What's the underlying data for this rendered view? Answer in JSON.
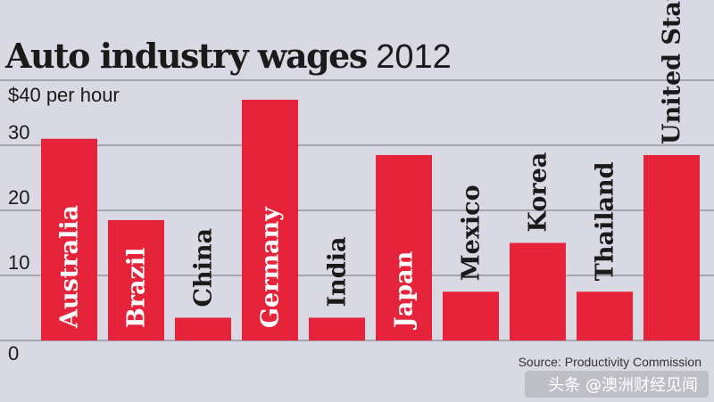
{
  "chart_data": {
    "type": "bar",
    "title": "Auto industry wages",
    "title_year": "2012",
    "ylabel": "per hour",
    "ylim": [
      0,
      40
    ],
    "y_ticks": [
      {
        "value": 0,
        "label": "0"
      },
      {
        "value": 10,
        "label": "10"
      },
      {
        "value": 20,
        "label": "20"
      },
      {
        "value": 30,
        "label": "30"
      },
      {
        "value": 40,
        "label": "$40 per hour"
      }
    ],
    "grid": true,
    "categories": [
      "Australia",
      "Brazil",
      "China",
      "Germany",
      "India",
      "Japan",
      "Mexico",
      "Korea",
      "Thailand",
      "United States"
    ],
    "values": [
      31,
      18.5,
      3.5,
      37,
      3.5,
      28.5,
      7.5,
      15,
      7.5,
      28.5
    ],
    "bar_color": "#e5243b",
    "label_inside_color": "#ffffff",
    "label_outside_color": "#1a1a1a",
    "gridline_color": "#a6a6b0",
    "background_color": "#d9d9e3"
  },
  "source": "Source: Productivity Commission",
  "watermark": "头条 @澳洲财经见闻"
}
